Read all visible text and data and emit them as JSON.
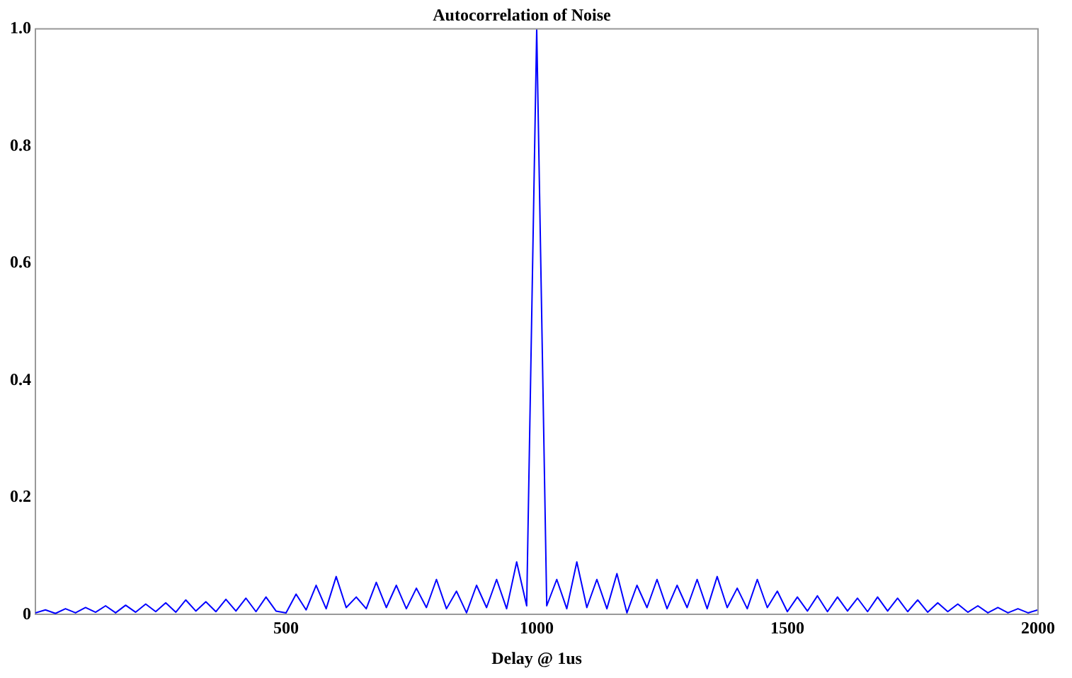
{
  "chart_data": {
    "type": "line",
    "title": "Autocorrelation of Noise",
    "xlabel": "Delay @ 1us",
    "x": [
      0,
      20,
      40,
      60,
      80,
      100,
      120,
      140,
      160,
      180,
      200,
      220,
      240,
      260,
      280,
      300,
      320,
      340,
      360,
      380,
      400,
      420,
      440,
      460,
      480,
      500,
      520,
      540,
      560,
      580,
      600,
      620,
      640,
      660,
      680,
      700,
      720,
      740,
      760,
      780,
      800,
      820,
      840,
      860,
      880,
      900,
      920,
      940,
      960,
      980,
      1000,
      1020,
      1040,
      1060,
      1080,
      1100,
      1120,
      1140,
      1160,
      1180,
      1200,
      1220,
      1240,
      1260,
      1280,
      1300,
      1320,
      1340,
      1360,
      1380,
      1400,
      1420,
      1440,
      1460,
      1480,
      1500,
      1520,
      1540,
      1560,
      1580,
      1600,
      1620,
      1640,
      1660,
      1680,
      1700,
      1720,
      1740,
      1760,
      1780,
      1800,
      1820,
      1840,
      1860,
      1880,
      1900,
      1920,
      1940,
      1960,
      1980,
      2000
    ],
    "series": [
      {
        "color": "#0000ff",
        "values": [
          0.003,
          0.008,
          0.002,
          0.01,
          0.003,
          0.012,
          0.004,
          0.015,
          0.003,
          0.016,
          0.004,
          0.018,
          0.005,
          0.02,
          0.004,
          0.025,
          0.006,
          0.022,
          0.005,
          0.026,
          0.006,
          0.028,
          0.005,
          0.03,
          0.006,
          0.003,
          0.035,
          0.008,
          0.05,
          0.01,
          0.065,
          0.012,
          0.03,
          0.01,
          0.055,
          0.012,
          0.05,
          0.01,
          0.045,
          0.012,
          0.06,
          0.01,
          0.04,
          0.003,
          0.05,
          0.012,
          0.06,
          0.01,
          0.09,
          0.015,
          1.0,
          0.015,
          0.06,
          0.01,
          0.09,
          0.012,
          0.06,
          0.01,
          0.07,
          0.003,
          0.05,
          0.012,
          0.06,
          0.01,
          0.05,
          0.012,
          0.06,
          0.01,
          0.065,
          0.012,
          0.045,
          0.01,
          0.06,
          0.012,
          0.04,
          0.005,
          0.03,
          0.006,
          0.032,
          0.005,
          0.03,
          0.006,
          0.028,
          0.005,
          0.03,
          0.006,
          0.028,
          0.005,
          0.025,
          0.004,
          0.02,
          0.005,
          0.018,
          0.004,
          0.015,
          0.003,
          0.012,
          0.003,
          0.01,
          0.003,
          0.008
        ]
      }
    ],
    "xlim": [
      0,
      2000
    ],
    "xticks": [
      500,
      1000,
      1500,
      2000
    ],
    "ylim": [
      0,
      1
    ],
    "yticks": [
      0,
      0.2,
      0.4,
      0.6,
      0.8,
      {
        "value": 1,
        "label": "1.0"
      }
    ],
    "grid": false,
    "legend": false,
    "marker": "none",
    "line_style": "solid"
  }
}
